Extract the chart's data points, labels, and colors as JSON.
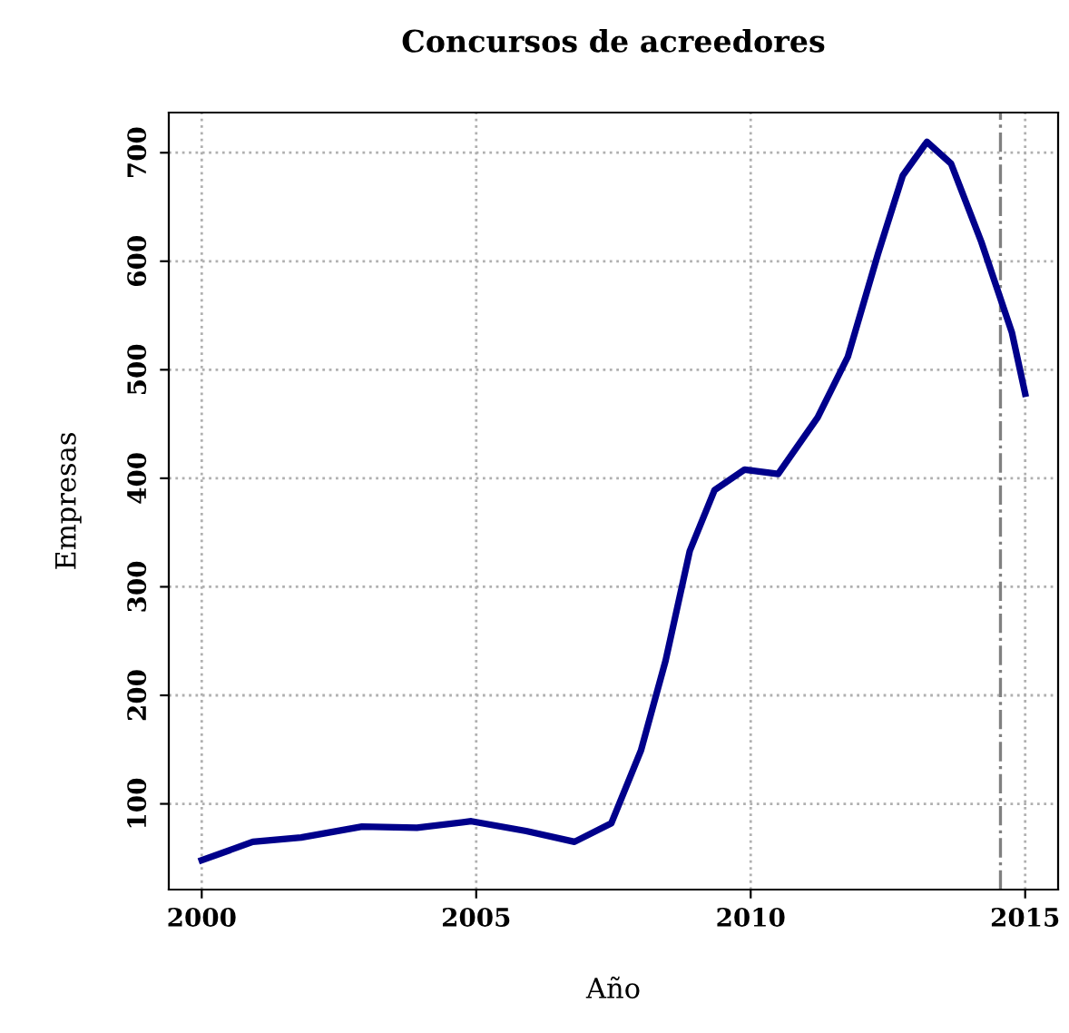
{
  "chart_data": {
    "type": "line",
    "title": "Concursos de acreedores",
    "xlabel": "Año",
    "ylabel": "Empresas",
    "x": [
      2000,
      2000.93,
      2001.81,
      2002.92,
      2003.92,
      2004.91,
      2005.91,
      2006.79,
      2007.46,
      2008.0,
      2008.45,
      2008.89,
      2009.34,
      2009.89,
      2010.5,
      2011.22,
      2011.77,
      2012.32,
      2012.77,
      2013.21,
      2013.65,
      2014.2,
      2014.76,
      2015.0
    ],
    "series": [
      {
        "color": "#00008b",
        "values": [
          48,
          65,
          69,
          79,
          78,
          84,
          75,
          65,
          82,
          149,
          232,
          333,
          389,
          408,
          404,
          456,
          512,
          607,
          679,
          710,
          690,
          618,
          534,
          478
        ]
      }
    ],
    "xlim": [
      1999.4,
      2015.6
    ],
    "ylim": [
      21,
      737
    ],
    "xticks": [
      2000,
      2005,
      2010,
      2015
    ],
    "yticks": [
      100,
      200,
      300,
      400,
      500,
      600,
      700
    ],
    "grid": true,
    "marker": "none",
    "line_style": "solid",
    "ref_lines": [
      {
        "axis": "x",
        "value": 2014.55,
        "color": "#808080",
        "line_style": "dashdot"
      }
    ]
  }
}
